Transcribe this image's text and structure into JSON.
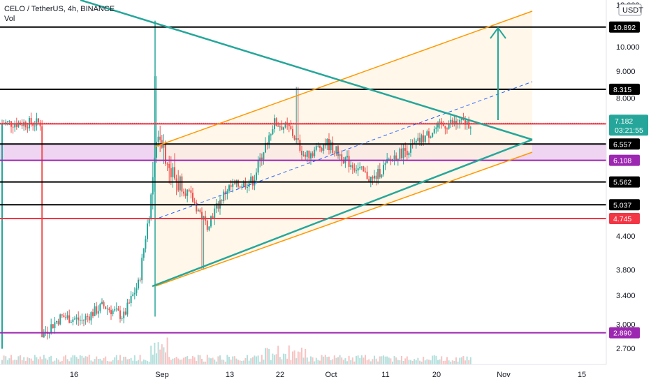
{
  "header": {
    "symbol": "CELO / TetherUS, 4h, BINANCE",
    "volume_label": "Vol"
  },
  "currency_label": "USDT",
  "countdown": "03:21:55",
  "colors": {
    "up": "#26a69a",
    "down": "#ef5350",
    "trendline": "#26a69a",
    "channel": "#ff9800",
    "black_level": "#000000",
    "red_level": "#f23645",
    "purple_level": "#9c27b0",
    "zone_fill": "#e8c3ec",
    "channel_fill": "#fff3e0"
  },
  "chart_data": {
    "type": "candlestick",
    "timeframe": "4h",
    "y_scale": "log",
    "ylim": [
      2.5,
      12.0
    ],
    "x_ticks": [
      "16",
      "Sep",
      "13",
      "22",
      "Oct",
      "11",
      "20",
      "Nov",
      "15"
    ],
    "y_ticks": [
      "12.000",
      "10.000",
      "9.000",
      "8.000",
      "4.400",
      "3.800",
      "3.400",
      "3.000",
      "2.700"
    ],
    "last_price": "7.182",
    "levels": [
      {
        "value": "10.892",
        "color": "black"
      },
      {
        "value": "8.315",
        "color": "black"
      },
      {
        "value": "7.157",
        "color": "red"
      },
      {
        "value": "6.557",
        "color": "black"
      },
      {
        "value": "6.108",
        "color": "purple"
      },
      {
        "value": "5.562",
        "color": "black"
      },
      {
        "value": "5.037",
        "color": "black"
      },
      {
        "value": "4.745",
        "color": "red"
      },
      {
        "value": "2.890",
        "color": "purple"
      }
    ],
    "zone": {
      "from": 6.108,
      "to": 6.557
    },
    "candles_approx": [
      {
        "date": "Aug 8",
        "open": 2.7,
        "high": 2.9,
        "low": 2.6,
        "close": 2.85
      },
      {
        "date": "Aug 12",
        "open": 2.85,
        "high": 3.2,
        "low": 2.8,
        "close": 3.1
      },
      {
        "date": "Aug 16",
        "open": 3.1,
        "high": 3.25,
        "low": 2.95,
        "close": 3.05
      },
      {
        "date": "Aug 20",
        "open": 3.05,
        "high": 3.35,
        "low": 3.0,
        "close": 3.25
      },
      {
        "date": "Aug 24",
        "open": 3.25,
        "high": 3.35,
        "low": 3.0,
        "close": 3.1
      },
      {
        "date": "Aug 27",
        "open": 3.1,
        "high": 3.7,
        "low": 3.05,
        "close": 3.6
      },
      {
        "date": "Aug 29",
        "open": 3.6,
        "high": 5.2,
        "low": 3.5,
        "close": 4.9
      },
      {
        "date": "Aug 31",
        "open": 4.9,
        "high": 8.8,
        "low": 4.6,
        "close": 7.0
      },
      {
        "date": "Sep 2",
        "open": 7.0,
        "high": 7.2,
        "low": 5.4,
        "close": 5.8
      },
      {
        "date": "Sep 6",
        "open": 5.8,
        "high": 6.1,
        "low": 5.0,
        "close": 5.2
      },
      {
        "date": "Sep 9",
        "open": 5.2,
        "high": 5.4,
        "low": 3.8,
        "close": 4.6
      },
      {
        "date": "Sep 13",
        "open": 4.6,
        "high": 5.6,
        "low": 4.2,
        "close": 5.4
      },
      {
        "date": "Sep 18",
        "open": 5.4,
        "high": 5.8,
        "low": 5.0,
        "close": 5.6
      },
      {
        "date": "Sep 22",
        "open": 5.6,
        "high": 7.6,
        "low": 5.5,
        "close": 7.2
      },
      {
        "date": "Sep 25",
        "open": 7.2,
        "high": 8.4,
        "low": 6.5,
        "close": 7.0
      },
      {
        "date": "Sep 28",
        "open": 7.0,
        "high": 7.2,
        "low": 5.9,
        "close": 6.2
      },
      {
        "date": "Oct 2",
        "open": 6.2,
        "high": 6.8,
        "low": 6.0,
        "close": 6.6
      },
      {
        "date": "Oct 6",
        "open": 6.6,
        "high": 6.7,
        "low": 5.9,
        "close": 6.1
      },
      {
        "date": "Oct 11",
        "open": 6.1,
        "high": 6.3,
        "low": 5.2,
        "close": 5.6
      },
      {
        "date": "Oct 15",
        "open": 5.6,
        "high": 6.4,
        "low": 5.5,
        "close": 6.2
      },
      {
        "date": "Oct 19",
        "open": 6.2,
        "high": 6.6,
        "low": 6.0,
        "close": 6.5
      },
      {
        "date": "Oct 23",
        "open": 6.5,
        "high": 7.4,
        "low": 6.3,
        "close": 7.0
      },
      {
        "date": "Oct 26",
        "open": 7.0,
        "high": 7.4,
        "low": 6.8,
        "close": 7.18
      }
    ]
  }
}
